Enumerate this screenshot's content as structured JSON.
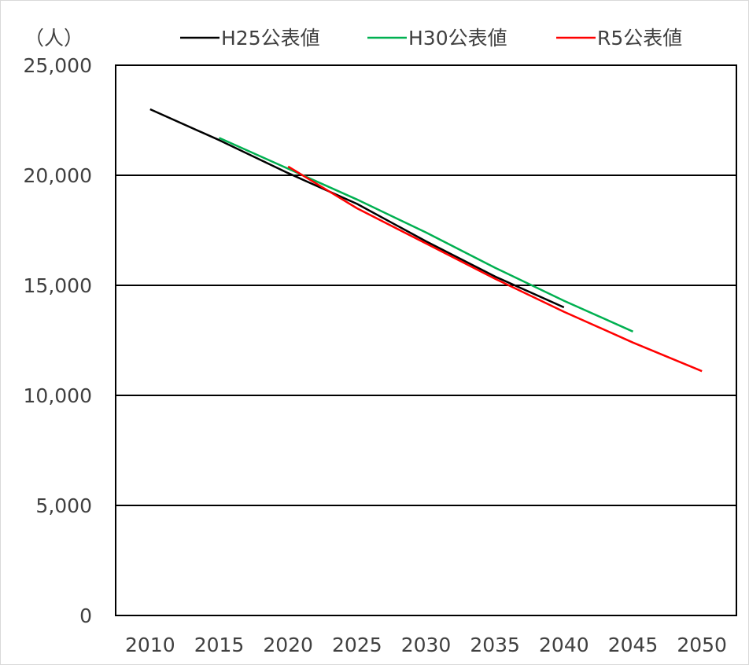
{
  "chart_data": {
    "type": "line",
    "unit_label": "（人）",
    "xlim": [
      2010,
      2050
    ],
    "ylim": [
      0,
      25000
    ],
    "x_ticks": [
      "2010",
      "2015",
      "2020",
      "2025",
      "2030",
      "2035",
      "2040",
      "2045",
      "2050"
    ],
    "y_ticks": [
      "0",
      "5,000",
      "10,000",
      "15,000",
      "20,000",
      "25,000"
    ],
    "y_tick_values": [
      0,
      5000,
      10000,
      15000,
      20000,
      25000
    ],
    "x_tick_values": [
      2010,
      2015,
      2020,
      2025,
      2030,
      2035,
      2040,
      2045,
      2050
    ],
    "grid": "horizontal",
    "legend_position": "top",
    "series": [
      {
        "name": "H25公表値",
        "color": "#000000",
        "points": [
          {
            "x": 2010,
            "y": 23000
          },
          {
            "x": 2015,
            "y": 21600
          },
          {
            "x": 2020,
            "y": 20100
          },
          {
            "x": 2025,
            "y": 18700
          },
          {
            "x": 2030,
            "y": 17000
          },
          {
            "x": 2035,
            "y": 15400
          },
          {
            "x": 2040,
            "y": 14000
          }
        ]
      },
      {
        "name": "H30公表値",
        "color": "#00b050",
        "points": [
          {
            "x": 2015,
            "y": 21700
          },
          {
            "x": 2020,
            "y": 20300
          },
          {
            "x": 2025,
            "y": 18900
          },
          {
            "x": 2030,
            "y": 17400
          },
          {
            "x": 2035,
            "y": 15800
          },
          {
            "x": 2040,
            "y": 14300
          },
          {
            "x": 2045,
            "y": 12900
          }
        ]
      },
      {
        "name": "R5公表値",
        "color": "#ff0000",
        "points": [
          {
            "x": 2020,
            "y": 20400
          },
          {
            "x": 2025,
            "y": 18500
          },
          {
            "x": 2030,
            "y": 16900
          },
          {
            "x": 2035,
            "y": 15300
          },
          {
            "x": 2040,
            "y": 13800
          },
          {
            "x": 2045,
            "y": 12400
          },
          {
            "x": 2050,
            "y": 11100
          }
        ]
      }
    ]
  }
}
